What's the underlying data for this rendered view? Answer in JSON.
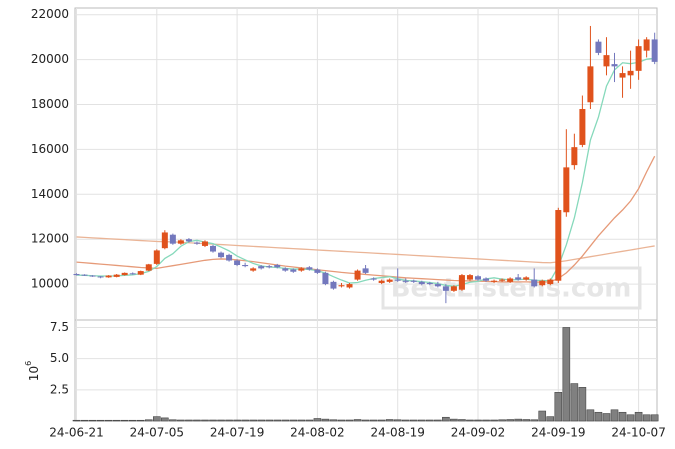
{
  "chart_data": [
    {
      "type": "candlestick",
      "categories": [
        "24-06-21",
        null,
        null,
        null,
        null,
        null,
        null,
        null,
        null,
        null,
        "24-07-05",
        null,
        null,
        null,
        null,
        null,
        null,
        null,
        null,
        null,
        "24-07-19",
        null,
        null,
        null,
        null,
        null,
        null,
        null,
        null,
        null,
        "24-08-02",
        null,
        null,
        null,
        null,
        null,
        null,
        null,
        null,
        null,
        "24-08-19",
        null,
        null,
        null,
        null,
        null,
        null,
        null,
        null,
        null,
        "24-09-02",
        null,
        null,
        null,
        null,
        null,
        null,
        null,
        null,
        null,
        "24-09-19",
        null,
        null,
        null,
        null,
        null,
        null,
        null,
        null,
        null,
        "24-10-07",
        null,
        null
      ],
      "open": [
        10450,
        10420,
        10380,
        10340,
        10300,
        10320,
        10400,
        10480,
        10420,
        10600,
        10900,
        11600,
        12200,
        11800,
        12000,
        11850,
        11700,
        11700,
        11400,
        11300,
        11050,
        10850,
        10600,
        10800,
        10800,
        10850,
        10700,
        10650,
        10600,
        10750,
        10650,
        10500,
        10100,
        9900,
        9850,
        10200,
        10700,
        10250,
        10050,
        10100,
        10200,
        10150,
        10150,
        10100,
        10050,
        10000,
        9900,
        9700,
        9750,
        10200,
        10350,
        10250,
        10100,
        10150,
        10100,
        10300,
        10200,
        10200,
        9950,
        10000,
        10150,
        13200,
        15300,
        16200,
        18100,
        20800,
        19700,
        19800,
        19200,
        19300,
        19500,
        20400,
        20900
      ],
      "high": [
        10480,
        10440,
        10400,
        10360,
        10400,
        10450,
        10520,
        10520,
        10600,
        10900,
        11550,
        12400,
        12250,
        12000,
        12050,
        11900,
        11950,
        11750,
        11450,
        11350,
        11100,
        10950,
        10750,
        10850,
        10850,
        10900,
        10750,
        10700,
        10750,
        10800,
        10700,
        10550,
        10150,
        10050,
        10050,
        10650,
        10850,
        10300,
        10200,
        10250,
        10700,
        10250,
        10200,
        10150,
        10100,
        10100,
        10000,
        9950,
        10450,
        10450,
        10400,
        10300,
        10200,
        10250,
        10300,
        10450,
        10350,
        10700,
        10200,
        10250,
        13400,
        16900,
        16700,
        18400,
        21500,
        20900,
        21000,
        20300,
        19700,
        20400,
        20900,
        21000,
        21200
      ],
      "low": [
        10380,
        10360,
        10320,
        10260,
        10280,
        10300,
        10380,
        10420,
        10400,
        10580,
        10850,
        11550,
        11750,
        11750,
        11850,
        11750,
        11650,
        11400,
        11150,
        11000,
        10800,
        10750,
        10550,
        10650,
        10700,
        10700,
        10550,
        10500,
        10550,
        10600,
        10450,
        9950,
        9750,
        9850,
        9800,
        10150,
        10450,
        10150,
        10000,
        10050,
        10100,
        10050,
        10050,
        9950,
        9950,
        9850,
        9150,
        9650,
        9700,
        10150,
        10150,
        10100,
        10050,
        10100,
        10050,
        10150,
        10150,
        9850,
        9900,
        9950,
        10050,
        13000,
        15100,
        16100,
        17800,
        20200,
        19300,
        19000,
        18300,
        18700,
        19100,
        20100,
        19800
      ],
      "close": [
        10400,
        10380,
        10350,
        10300,
        10380,
        10420,
        10500,
        10450,
        10580,
        10880,
        11500,
        12300,
        11800,
        11950,
        11900,
        11800,
        11900,
        11450,
        11200,
        11050,
        10850,
        10800,
        10700,
        10700,
        10750,
        10750,
        10600,
        10550,
        10700,
        10650,
        10500,
        10000,
        9800,
        9950,
        10000,
        10600,
        10500,
        10200,
        10150,
        10200,
        10150,
        10100,
        10100,
        10000,
        10000,
        9900,
        9700,
        9900,
        10400,
        10400,
        10200,
        10150,
        10150,
        10200,
        10250,
        10200,
        10300,
        9900,
        10150,
        10200,
        13300,
        15200,
        16100,
        17800,
        19700,
        20300,
        20200,
        19700,
        19400,
        19500,
        20600,
        20900,
        19900
      ],
      "up_color": "#e0521c",
      "down_color": "#7378bd",
      "series": [
        {
          "color": "#eab496",
          "values": [
            12100,
            12080,
            12060,
            12040,
            12020,
            12000,
            11980,
            11960,
            11940,
            11920,
            11900,
            11890,
            11880,
            11860,
            11840,
            11820,
            11800,
            11780,
            11760,
            11740,
            11720,
            11700,
            11680,
            11660,
            11640,
            11620,
            11600,
            11580,
            11560,
            11540,
            11520,
            11500,
            11480,
            11460,
            11440,
            11420,
            11400,
            11380,
            11360,
            11340,
            11320,
            11300,
            11280,
            11260,
            11240,
            11220,
            11200,
            11180,
            11160,
            11140,
            11120,
            11100,
            11080,
            11060,
            11040,
            11020,
            11000,
            10980,
            10960,
            10950,
            10990,
            11040,
            11100,
            11160,
            11220,
            11280,
            11340,
            11400,
            11460,
            11520,
            11580,
            11640,
            11700
          ]
        },
        {
          "color": "#e69a78",
          "values": [
            10980,
            10950,
            10920,
            10890,
            10860,
            10830,
            10800,
            10770,
            10740,
            10720,
            10700,
            10760,
            10820,
            10880,
            10940,
            11000,
            11060,
            11100,
            11120,
            11110,
            11080,
            11040,
            11000,
            10950,
            10900,
            10850,
            10800,
            10760,
            10720,
            10680,
            10640,
            10600,
            10560,
            10520,
            10490,
            10460,
            10430,
            10400,
            10370,
            10340,
            10310,
            10280,
            10260,
            10240,
            10220,
            10200,
            10180,
            10160,
            10150,
            10140,
            10130,
            10120,
            10110,
            10100,
            10100,
            10100,
            10100,
            10090,
            10090,
            10100,
            10250,
            10500,
            10850,
            11250,
            11700,
            12150,
            12550,
            12950,
            13300,
            13700,
            14250,
            15000,
            15700
          ]
        },
        {
          "color": "#86d9bb",
          "values": [
            10400,
            10390,
            10370,
            10360,
            10360,
            10366,
            10390,
            10410,
            10466,
            10566,
            10782,
            11142,
            11352,
            11686,
            11890,
            11950,
            11870,
            11800,
            11650,
            11480,
            11250,
            11080,
            10920,
            10810,
            10760,
            10740,
            10700,
            10670,
            10670,
            10650,
            10600,
            10490,
            10330,
            10180,
            10050,
            10070,
            10170,
            10250,
            10290,
            10330,
            10240,
            10160,
            10140,
            10110,
            10070,
            10020,
            9940,
            9900,
            9980,
            10080,
            10120,
            10230,
            10280,
            10220,
            10190,
            10200,
            10220,
            10170,
            10160,
            10150,
            10780,
            11750,
            12950,
            14520,
            16420,
            17440,
            18820,
            19540,
            19860,
            19820,
            19880,
            20020,
            20060
          ]
        }
      ],
      "ylim": [
        8400,
        22300
      ],
      "yticks": [
        10000,
        12000,
        14000,
        16000,
        18000,
        20000,
        22000
      ],
      "grid": true,
      "watermark": "BestListens.com"
    },
    {
      "type": "bar",
      "values": [
        0.06,
        0.06,
        0.06,
        0.06,
        0.06,
        0.06,
        0.06,
        0.06,
        0.06,
        0.1,
        0.35,
        0.25,
        0.1,
        0.08,
        0.08,
        0.08,
        0.08,
        0.08,
        0.08,
        0.08,
        0.08,
        0.08,
        0.08,
        0.08,
        0.08,
        0.08,
        0.08,
        0.08,
        0.08,
        0.08,
        0.2,
        0.15,
        0.1,
        0.08,
        0.08,
        0.12,
        0.08,
        0.08,
        0.08,
        0.12,
        0.1,
        0.08,
        0.08,
        0.08,
        0.08,
        0.08,
        0.3,
        0.15,
        0.12,
        0.08,
        0.08,
        0.08,
        0.08,
        0.1,
        0.12,
        0.15,
        0.12,
        0.1,
        0.8,
        0.35,
        2.3,
        7.5,
        3.0,
        2.7,
        0.9,
        0.7,
        0.6,
        0.9,
        0.7,
        0.5,
        0.7,
        0.5,
        0.5
      ],
      "color": "#808080",
      "ylim": [
        0,
        8.1
      ],
      "yticks": [
        2.5,
        {
          "value": 5,
          "label": "5.0"
        },
        7.5
      ],
      "ylabel": {
        "base": "10",
        "exponent": "6"
      }
    }
  ]
}
